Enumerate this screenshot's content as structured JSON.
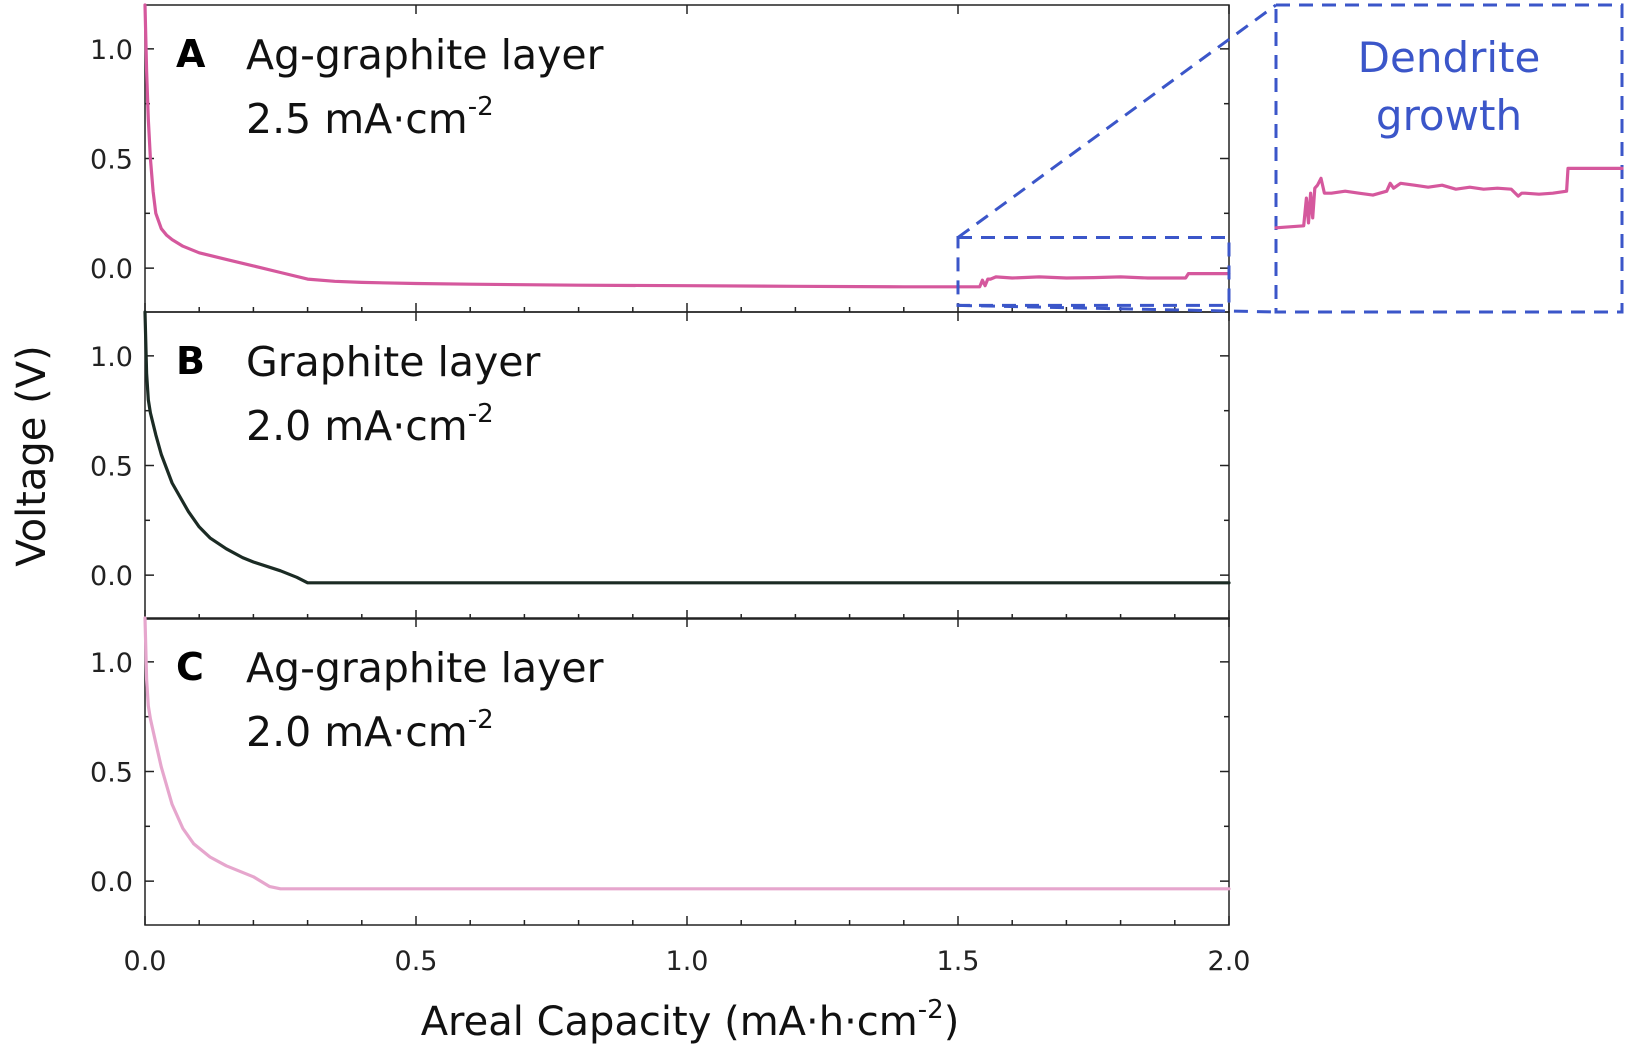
{
  "chart_data": {
    "type": "line",
    "xlabel": "Areal Capacity (mA·h·cm",
    "xlabel_sup": "-2",
    "xlabel_end": ")",
    "ylabel": "Voltage (V)",
    "xlim": [
      0,
      2.0
    ],
    "ylim": [
      -0.2,
      1.2
    ],
    "x_ticks": [
      "0.0",
      "0.5",
      "1.0",
      "1.5",
      "2.0"
    ],
    "x_tick_values": [
      0,
      0.5,
      1.0,
      1.5,
      2.0
    ],
    "y_ticks": [
      "0.0",
      "0.5",
      "1.0"
    ],
    "y_tick_values": [
      0,
      0.5,
      1.0
    ],
    "grid": false,
    "panels": [
      {
        "letter": "A",
        "label": "Ag-graphite layer",
        "rate": "2.5 mA·cm",
        "rate_sup": "-2",
        "color": "#d5589d",
        "x": [
          0,
          0.003,
          0.006,
          0.01,
          0.015,
          0.02,
          0.03,
          0.04,
          0.05,
          0.07,
          0.1,
          0.15,
          0.2,
          0.25,
          0.3,
          0.35,
          0.4,
          0.5,
          0.6,
          0.8,
          1.0,
          1.2,
          1.4,
          1.5,
          1.54,
          1.545,
          1.55,
          1.555,
          1.56,
          1.57,
          1.6,
          1.65,
          1.7,
          1.75,
          1.8,
          1.85,
          1.9,
          1.92,
          1.925,
          1.95,
          2.0
        ],
        "y": [
          1.2,
          0.9,
          0.68,
          0.5,
          0.35,
          0.25,
          0.18,
          0.15,
          0.13,
          0.1,
          0.07,
          0.04,
          0.01,
          -0.02,
          -0.05,
          -0.06,
          -0.065,
          -0.07,
          -0.073,
          -0.078,
          -0.08,
          -0.083,
          -0.085,
          -0.085,
          -0.085,
          -0.055,
          -0.08,
          -0.05,
          -0.05,
          -0.04,
          -0.045,
          -0.04,
          -0.045,
          -0.043,
          -0.04,
          -0.045,
          -0.045,
          -0.045,
          -0.025,
          -0.025,
          -0.025
        ]
      },
      {
        "letter": "B",
        "label": "Graphite layer",
        "rate": "2.0 mA·cm",
        "rate_sup": "-2",
        "color": "#1b2b24",
        "x": [
          0,
          0.003,
          0.006,
          0.01,
          0.02,
          0.03,
          0.05,
          0.08,
          0.1,
          0.12,
          0.15,
          0.18,
          0.2,
          0.25,
          0.28,
          0.3,
          0.5,
          1.0,
          1.5,
          2.0
        ],
        "y": [
          1.2,
          0.92,
          0.8,
          0.74,
          0.64,
          0.55,
          0.42,
          0.29,
          0.22,
          0.17,
          0.12,
          0.08,
          0.06,
          0.02,
          -0.01,
          -0.035,
          -0.035,
          -0.035,
          -0.035,
          -0.035
        ]
      },
      {
        "letter": "C",
        "label": "Ag-graphite layer",
        "rate": "2.0 mA·cm",
        "rate_sup": "-2",
        "color": "#e6a6cd",
        "x": [
          0,
          0.003,
          0.006,
          0.01,
          0.02,
          0.03,
          0.05,
          0.07,
          0.09,
          0.12,
          0.15,
          0.2,
          0.23,
          0.25,
          0.5,
          1.0,
          1.5,
          2.0
        ],
        "y": [
          1.2,
          0.92,
          0.8,
          0.74,
          0.63,
          0.52,
          0.35,
          0.24,
          0.17,
          0.11,
          0.07,
          0.02,
          -0.025,
          -0.035,
          -0.035,
          -0.035,
          -0.035,
          -0.035
        ]
      }
    ],
    "inset": {
      "title_line1": "Dendrite",
      "title_line2": "growth",
      "color": "#3b56c9",
      "zoom_panel": "A",
      "xlim": [
        1.5,
        2.0
      ],
      "ylim": [
        -0.17,
        0.14
      ],
      "x": [
        1.5,
        1.52,
        1.54,
        1.544,
        1.547,
        1.55,
        1.553,
        1.556,
        1.56,
        1.565,
        1.57,
        1.58,
        1.6,
        1.62,
        1.64,
        1.66,
        1.665,
        1.67,
        1.68,
        1.7,
        1.72,
        1.74,
        1.76,
        1.78,
        1.8,
        1.82,
        1.84,
        1.85,
        1.855,
        1.86,
        1.88,
        1.9,
        1.92,
        1.922,
        1.95,
        2.0
      ],
      "y": [
        -0.085,
        -0.084,
        -0.083,
        -0.055,
        -0.08,
        -0.05,
        -0.075,
        -0.045,
        -0.042,
        -0.035,
        -0.05,
        -0.05,
        -0.048,
        -0.05,
        -0.052,
        -0.048,
        -0.04,
        -0.045,
        -0.04,
        -0.042,
        -0.044,
        -0.042,
        -0.046,
        -0.044,
        -0.046,
        -0.045,
        -0.046,
        -0.053,
        -0.05,
        -0.05,
        -0.051,
        -0.05,
        -0.048,
        -0.025,
        -0.025,
        -0.025
      ]
    }
  }
}
